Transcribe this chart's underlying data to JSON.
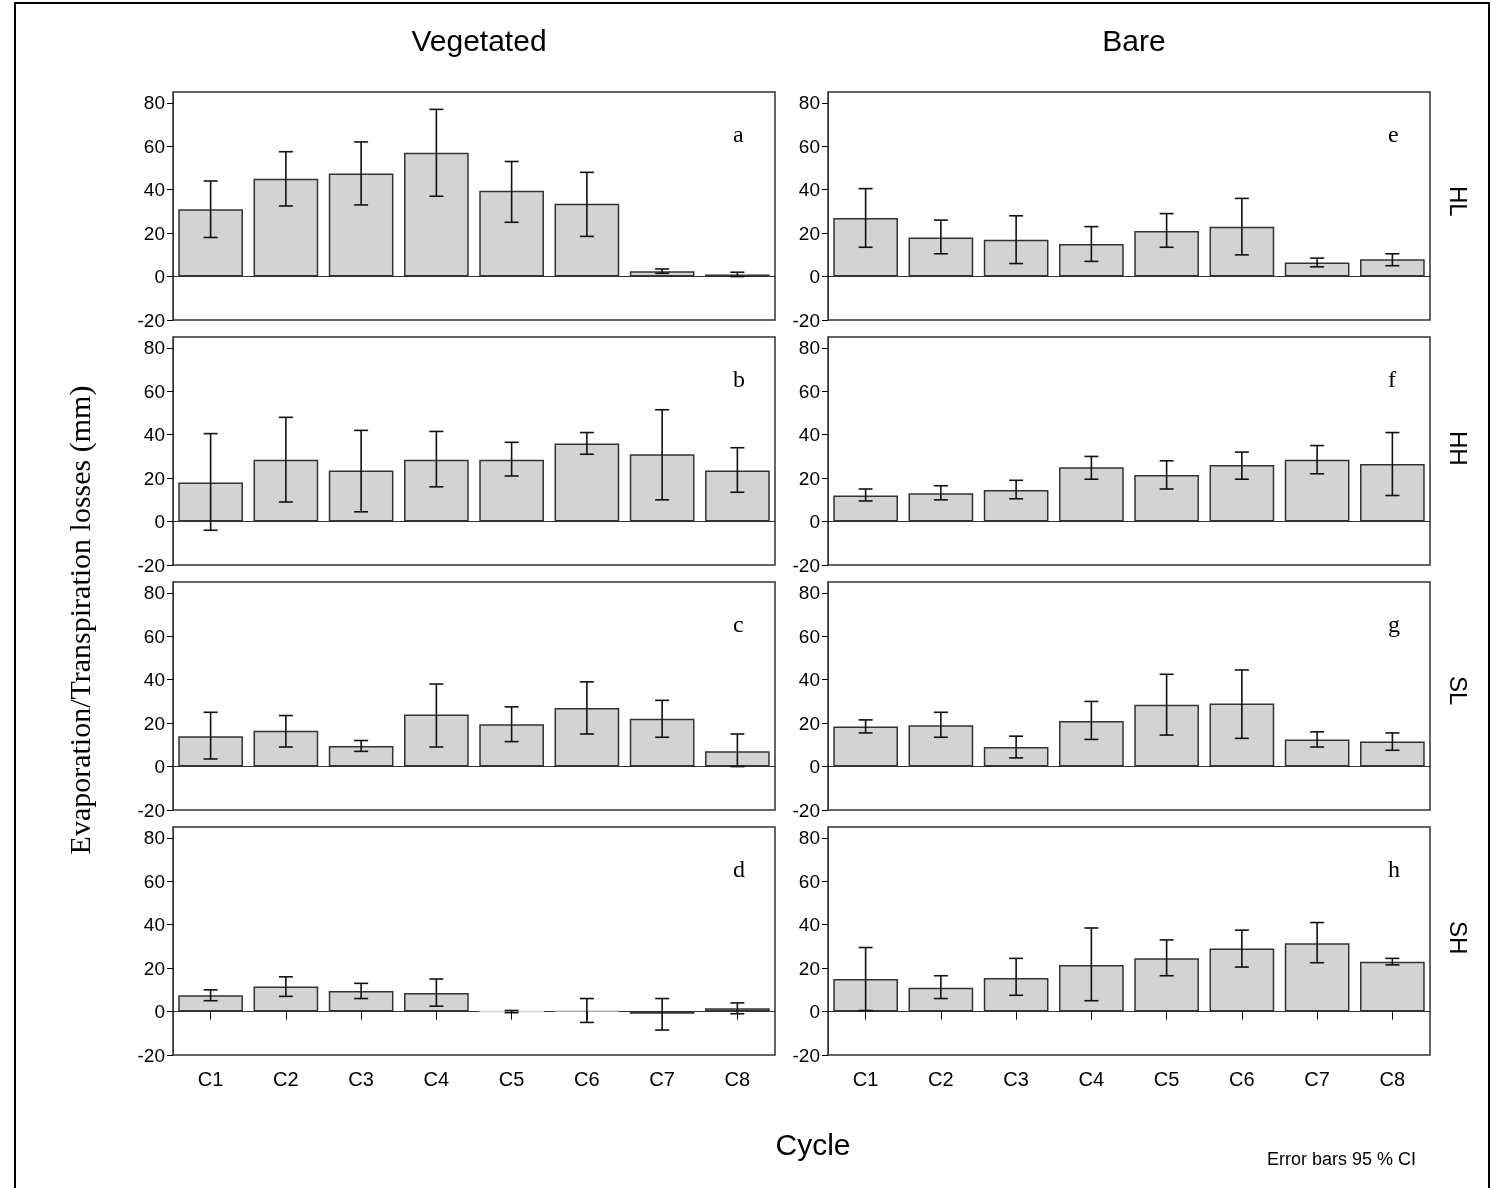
{
  "chart_data": [
    {
      "type": "bar",
      "title": "Vegetated",
      "ylabel": "Evaporation/Transpiration losses (mm)",
      "categories": [
        null,
        null,
        null,
        null,
        null,
        null,
        null,
        null
      ],
      "ylim": [
        -20,
        85
      ],
      "yticks": [
        -20,
        0,
        20,
        40,
        60,
        80
      ],
      "tick_labels": "y",
      "annotations": [
        "a"
      ],
      "series": [
        {
          "color": "#d3d3d3",
          "values": [
            31,
            45,
            47.5,
            57,
            39.5,
            33.5,
            2.5,
            1
          ],
          "errors": [
            [
              18,
              44
            ],
            [
              32.5,
              57.5
            ],
            [
              33,
              62
            ],
            [
              37,
              77
            ],
            [
              25,
              53
            ],
            [
              18.5,
              48
            ],
            [
              1.5,
              3.5
            ],
            [
              0,
              2
            ]
          ]
        }
      ]
    },
    {
      "type": "bar",
      "title": "Bare",
      "categories": [
        null,
        null,
        null,
        null,
        null,
        null,
        null,
        null
      ],
      "ylim": [
        -20,
        85
      ],
      "yticks": [
        -20,
        0,
        20,
        40,
        60,
        80
      ],
      "tick_labels": "y",
      "annotations": [
        "e",
        "HL"
      ],
      "series": [
        {
          "color": "#d3d3d3",
          "values": [
            27,
            18,
            17,
            15,
            21,
            23,
            6.5,
            8
          ],
          "errors": [
            [
              13.5,
              40.5
            ],
            [
              10.5,
              26
            ],
            [
              6,
              28
            ],
            [
              7,
              23
            ],
            [
              13.5,
              29
            ],
            [
              10,
              36
            ],
            [
              4.5,
              8.5
            ],
            [
              5,
              10.5
            ]
          ]
        }
      ]
    },
    {
      "type": "bar",
      "categories": [
        null,
        null,
        null,
        null,
        null,
        null,
        null,
        null
      ],
      "ylim": [
        -20,
        85
      ],
      "yticks": [
        -20,
        0,
        20,
        40,
        60,
        80
      ],
      "tick_labels": "y",
      "annotations": [
        "b"
      ],
      "series": [
        {
          "color": "#d3d3d3",
          "values": [
            18,
            28.5,
            23.5,
            28.5,
            28.5,
            36,
            31,
            23.5
          ],
          "errors": [
            [
              -4,
              40.5
            ],
            [
              9,
              48
            ],
            [
              4.5,
              42
            ],
            [
              16,
              41.5
            ],
            [
              21,
              36.5
            ],
            [
              31,
              41
            ],
            [
              10,
              51.5
            ],
            [
              13.5,
              34
            ]
          ]
        }
      ]
    },
    {
      "type": "bar",
      "categories": [
        null,
        null,
        null,
        null,
        null,
        null,
        null,
        null
      ],
      "ylim": [
        -20,
        85
      ],
      "yticks": [
        -20,
        0,
        20,
        40,
        60,
        80
      ],
      "tick_labels": "y",
      "annotations": [
        "f",
        "HH"
      ],
      "series": [
        {
          "color": "#d3d3d3",
          "values": [
            12,
            13,
            14.5,
            25,
            21.5,
            26,
            28.5,
            26.5
          ],
          "errors": [
            [
              9.5,
              15
            ],
            [
              10,
              16.5
            ],
            [
              10.5,
              19
            ],
            [
              19.5,
              30
            ],
            [
              15,
              28
            ],
            [
              19.5,
              32
            ],
            [
              22,
              35
            ],
            [
              12,
              41
            ]
          ]
        }
      ]
    },
    {
      "type": "bar",
      "categories": [
        null,
        null,
        null,
        null,
        null,
        null,
        null,
        null
      ],
      "ylim": [
        -20,
        85
      ],
      "yticks": [
        -20,
        0,
        20,
        40,
        60,
        80
      ],
      "tick_labels": "y",
      "annotations": [
        "c"
      ],
      "series": [
        {
          "color": "#d3d3d3",
          "values": [
            14,
            16.5,
            9.5,
            24,
            19.5,
            27,
            22,
            7
          ],
          "errors": [
            [
              3.5,
              25
            ],
            [
              9,
              23.5
            ],
            [
              7,
              12
            ],
            [
              9,
              38
            ],
            [
              11.5,
              27.5
            ],
            [
              15,
              39
            ],
            [
              13.5,
              30.5
            ],
            [
              0,
              15
            ]
          ]
        }
      ]
    },
    {
      "type": "bar",
      "categories": [
        null,
        null,
        null,
        null,
        null,
        null,
        null,
        null
      ],
      "ylim": [
        -20,
        85
      ],
      "yticks": [
        -20,
        0,
        20,
        40,
        60,
        80
      ],
      "tick_labels": "y",
      "annotations": [
        "g",
        "SL"
      ],
      "series": [
        {
          "color": "#d3d3d3",
          "values": [
            18.5,
            19,
            9,
            21,
            28.5,
            29,
            12.5,
            11.5
          ],
          "errors": [
            [
              15.5,
              21.5
            ],
            [
              13.5,
              25
            ],
            [
              4,
              14
            ],
            [
              12.5,
              30
            ],
            [
              14.5,
              42.5
            ],
            [
              13,
              44.5
            ],
            [
              9,
              16
            ],
            [
              7.5,
              15.5
            ]
          ]
        }
      ]
    },
    {
      "type": "bar",
      "xlabel": "Cycle",
      "categories": [
        "C1",
        "C2",
        "C3",
        "C4",
        "C5",
        "C6",
        "C7",
        "C8"
      ],
      "ylim": [
        -20,
        85
      ],
      "yticks": [
        -20,
        0,
        20,
        40,
        60,
        80
      ],
      "annotations": [
        "d"
      ],
      "series": [
        {
          "color": "#d3d3d3",
          "values": [
            7.5,
            11.5,
            9.5,
            8.5,
            0,
            0.5,
            -1,
            1.5
          ],
          "errors": [
            [
              5,
              10
            ],
            [
              7,
              16
            ],
            [
              6,
              13
            ],
            [
              2.5,
              15
            ],
            [
              -0.5,
              0.5
            ],
            [
              -5,
              6
            ],
            [
              -8.5,
              6
            ],
            [
              -1,
              4
            ]
          ]
        }
      ]
    },
    {
      "type": "bar",
      "categories": [
        "C1",
        "C2",
        "C3",
        "C4",
        "C5",
        "C6",
        "C7",
        "C8"
      ],
      "ylim": [
        -20,
        85
      ],
      "yticks": [
        -20,
        0,
        20,
        40,
        60,
        80
      ],
      "annotations": [
        "h",
        "SH",
        "Error bars 95 % CI"
      ],
      "series": [
        {
          "color": "#d3d3d3",
          "values": [
            15,
            11,
            15.5,
            21.5,
            24.5,
            29,
            31.5,
            23
          ],
          "errors": [
            [
              0.5,
              29.5
            ],
            [
              6,
              16.5
            ],
            [
              7.5,
              24.5
            ],
            [
              5,
              38.5
            ],
            [
              16.5,
              33
            ],
            [
              20.5,
              37.5
            ],
            [
              22.5,
              41
            ],
            [
              21.5,
              24.5
            ]
          ]
        }
      ]
    }
  ]
}
